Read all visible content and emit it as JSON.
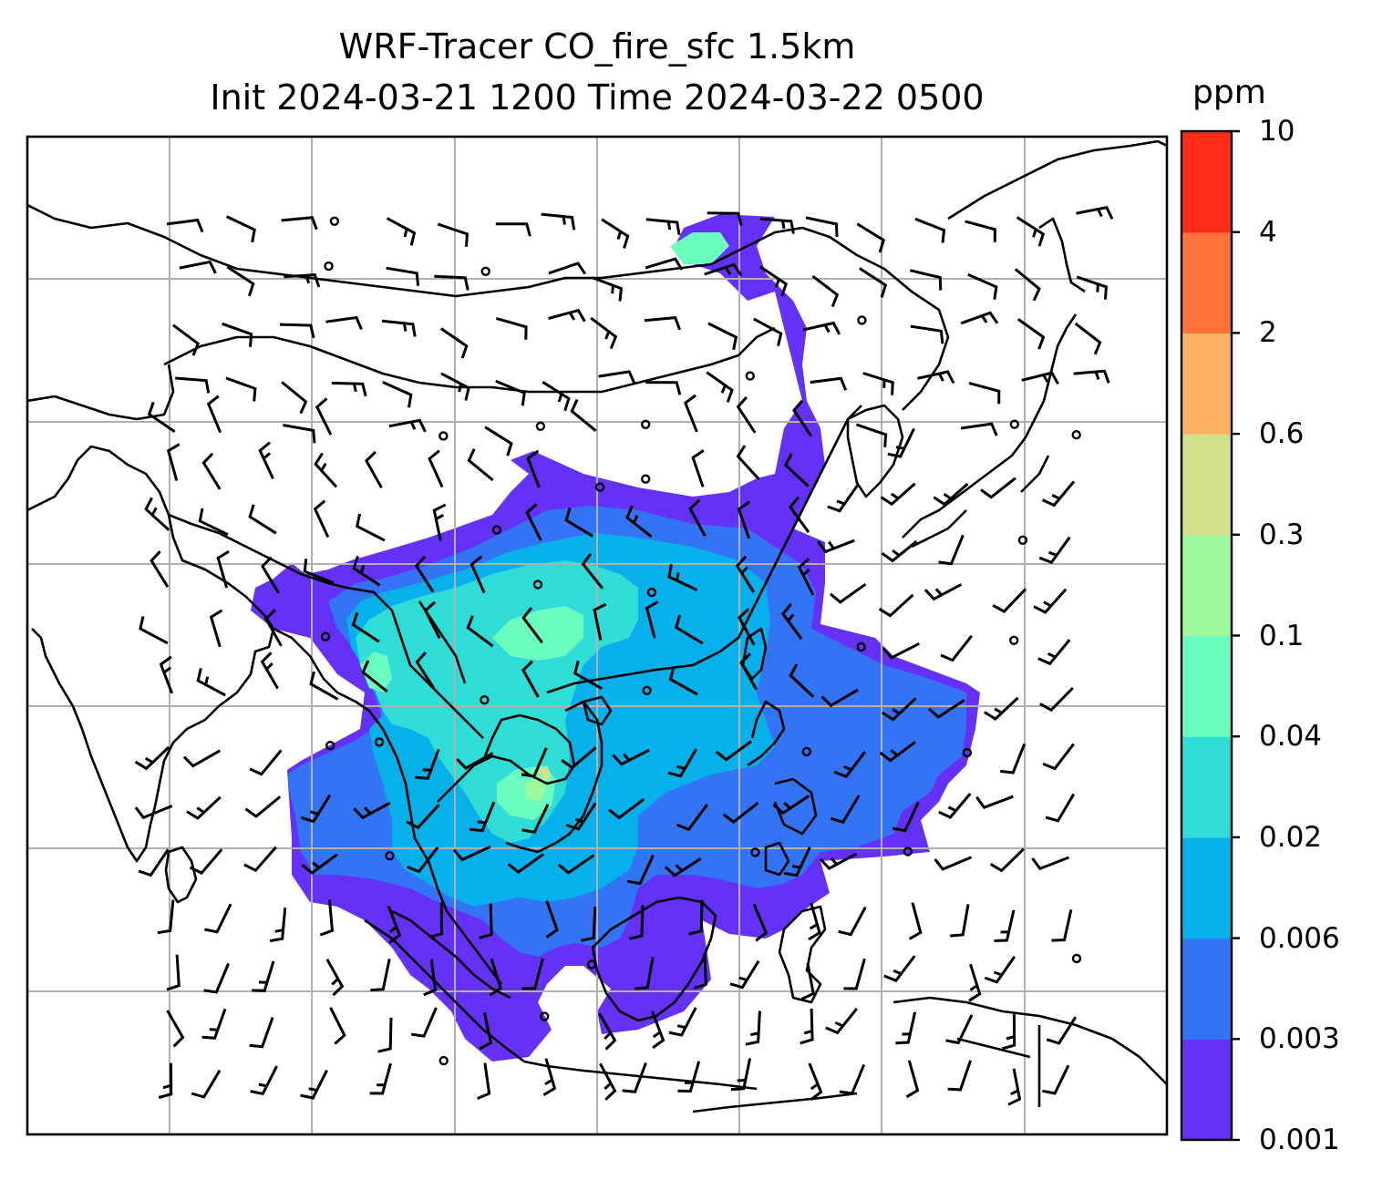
{
  "title_line1": "WRF-Tracer CO_fire_sfc 1.5km",
  "title_line2": "Init 2024-03-21 1200 Time 2024-03-22 0500",
  "colorbar": {
    "units": "ppm",
    "levels": [
      "0.001",
      "0.003",
      "0.006",
      "0.02",
      "0.04",
      "0.1",
      "0.3",
      "0.6",
      "2",
      "4",
      "10"
    ],
    "colors": [
      "#6531f7",
      "#3374f4",
      "#07b0ea",
      "#2fdcd6",
      "#6bfcbf",
      "#9cf99e",
      "#d3e08c",
      "#fdb164",
      "#ff7239",
      "#ff2d17"
    ]
  },
  "map": {
    "background": "#ffffff",
    "gridline_color": "#b0b0b0",
    "coastline_color": "#000000"
  }
}
